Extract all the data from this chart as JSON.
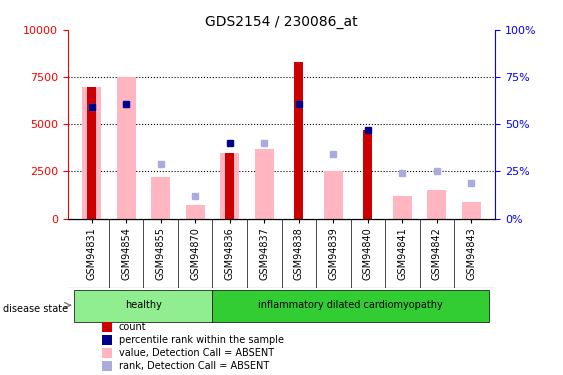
{
  "title": "GDS2154 / 230086_at",
  "samples": [
    "GSM94831",
    "GSM94854",
    "GSM94855",
    "GSM94870",
    "GSM94836",
    "GSM94837",
    "GSM94838",
    "GSM94839",
    "GSM94840",
    "GSM94841",
    "GSM94842",
    "GSM94843"
  ],
  "groups": [
    {
      "label": "healthy",
      "indices": [
        0,
        1,
        2,
        3
      ],
      "color": "#90EE90"
    },
    {
      "label": "inflammatory dilated cardiomyopathy",
      "indices": [
        4,
        5,
        6,
        7,
        8,
        9,
        10,
        11
      ],
      "color": "#32CD32"
    }
  ],
  "count_values": [
    7000,
    0,
    0,
    0,
    3500,
    0,
    8300,
    0,
    4700,
    0,
    0,
    0
  ],
  "percentile_values": [
    59,
    61,
    0,
    0,
    40,
    0,
    61,
    0,
    47,
    0,
    0,
    0
  ],
  "absent_value_values": [
    7000,
    7500,
    2200,
    700,
    3500,
    3700,
    0,
    2500,
    0,
    1200,
    1500,
    900
  ],
  "absent_rank_values": [
    59,
    61,
    29,
    12,
    0,
    40,
    0,
    34,
    0,
    24,
    25,
    19
  ],
  "ylim_left": [
    0,
    10000
  ],
  "ylim_right": [
    0,
    100
  ],
  "yticks_left": [
    0,
    2500,
    5000,
    7500,
    10000
  ],
  "yticks_right": [
    0,
    25,
    50,
    75,
    100
  ],
  "color_count": "#CC0000",
  "color_percentile": "#00008B",
  "color_absent_value": "#FFB6C1",
  "color_absent_rank": "#AAAADD",
  "disease_state_label": "disease state",
  "legend_items": [
    {
      "label": "count",
      "color": "#CC0000"
    },
    {
      "label": "percentile rank within the sample",
      "color": "#00008B"
    },
    {
      "label": "value, Detection Call = ABSENT",
      "color": "#FFB6C1"
    },
    {
      "label": "rank, Detection Call = ABSENT",
      "color": "#AAAADD"
    }
  ],
  "bg_white": "#FFFFFF",
  "bg_gray": "#D3D3D3",
  "tick_label_fontsize": 7,
  "axis_label_fontsize": 8,
  "title_fontsize": 10
}
